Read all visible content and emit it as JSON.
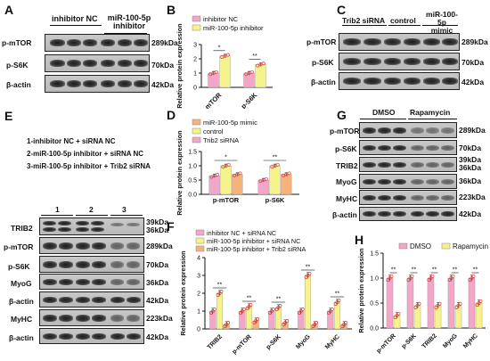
{
  "panels": {
    "A": {
      "label": "A",
      "groups": [
        "inhibitor NC",
        "miR-100-5p\ninhibitor"
      ],
      "rows": [
        {
          "name": "p-mTOR",
          "kda": "289kDa"
        },
        {
          "name": "p-S6K",
          "kda": "70kDa"
        },
        {
          "name": "β-actin",
          "kda": "42kDa"
        }
      ]
    },
    "C": {
      "label": "C",
      "groups": [
        "Trib2 siRNA",
        "control",
        "miR-100-5p\nmimic"
      ],
      "rows": [
        {
          "name": "p-mTOR",
          "kda": "289kDa"
        },
        {
          "name": "p-S6K",
          "kda": "70kDa"
        },
        {
          "name": "β-actin",
          "kda": "42kDa"
        }
      ]
    },
    "E": {
      "label": "E",
      "legend": [
        "1-inhibitor NC + siRNA NC",
        "2-miR-100-5p inhibitor + siRNA NC",
        "3-miR-100-5p inhibitor + Trib2 siRNA"
      ],
      "lanes": [
        "1",
        "2",
        "3"
      ],
      "rows": [
        {
          "name": "TRIB2",
          "kda": "39kDa\n36kDa"
        },
        {
          "name": "p-mTOR",
          "kda": "289kDa"
        },
        {
          "name": "p-S6K",
          "kda": "70kDa"
        },
        {
          "name": "MyoG",
          "kda": "36kDa"
        },
        {
          "name": "β-actin",
          "kda": "42kDa"
        },
        {
          "name": "MyHC",
          "kda": "223kDa"
        },
        {
          "name": "β-actin",
          "kda": "42kDa"
        }
      ]
    },
    "G": {
      "label": "G",
      "groups": [
        "DMSO",
        "Rapamycin"
      ],
      "rows": [
        {
          "name": "p-mTOR",
          "kda": "289kDa"
        },
        {
          "name": "p-S6K",
          "kda": "70kDa"
        },
        {
          "name": "TRIB2",
          "kda": "39kDa\n36kDa"
        },
        {
          "name": "MyoG",
          "kda": "36kDa"
        },
        {
          "name": "MyHC",
          "kda": "223kDa"
        },
        {
          "name": "β-actin",
          "kda": "42kDa"
        }
      ]
    }
  },
  "chart_data": [
    {
      "id": "B",
      "label": "B",
      "type": "bar",
      "ylabel": "Relative protein expression",
      "ylim": [
        0,
        3
      ],
      "yticks": [
        0,
        1,
        2,
        3
      ],
      "categories": [
        "p-mTOR",
        "p-S6K"
      ],
      "series": [
        {
          "name": "inhibitor NC",
          "color": "#f2a6c8",
          "values": [
            1.0,
            1.0
          ]
        },
        {
          "name": "miR-100-5p inhibitor",
          "color": "#f6f28c",
          "values": [
            2.2,
            1.6
          ]
        }
      ],
      "significance": [
        "*",
        "**"
      ]
    },
    {
      "id": "D",
      "label": "D",
      "type": "bar",
      "ylabel": "Relative protein expression",
      "ylim": [
        0,
        1.5
      ],
      "yticks": [
        0.0,
        0.5,
        1.0,
        1.5
      ],
      "categories": [
        "p-mTOR",
        "p-S6K"
      ],
      "series": [
        {
          "name": "Trib2 siRNA",
          "color": "#f2a6c8",
          "values": [
            0.65,
            0.5
          ]
        },
        {
          "name": "control",
          "color": "#f6f28c",
          "values": [
            1.0,
            1.0
          ]
        },
        {
          "name": "miR-100-5p mimic",
          "color": "#f5b27c",
          "values": [
            0.7,
            0.7
          ]
        }
      ],
      "legend_order": [
        "miR-100-5p mimic",
        "control",
        "Trib2 siRNA"
      ],
      "significance": [
        "*",
        "**",
        "**",
        "**"
      ]
    },
    {
      "id": "F",
      "label": "F",
      "type": "bar",
      "ylabel": "Relative protein expression",
      "ylim": [
        0,
        4
      ],
      "yticks": [
        0,
        1,
        2,
        3,
        4
      ],
      "categories": [
        "TRIB2",
        "p-mTOR",
        "p-S6K",
        "MyoG",
        "MyHC"
      ],
      "series": [
        {
          "name": "inhibitor NC + siRNA NC",
          "color": "#f2a6c8",
          "values": [
            1.0,
            1.0,
            1.0,
            1.0,
            1.0
          ]
        },
        {
          "name": "miR-100-5p inhibitor + siRNA NC",
          "color": "#f6f28c",
          "values": [
            2.0,
            1.25,
            1.2,
            3.0,
            1.5
          ]
        },
        {
          "name": "miR-100-5p inhibitor + Trib2 siRNA",
          "color": "#f5b27c",
          "values": [
            0.25,
            0.45,
            0.35,
            0.25,
            0.25
          ]
        }
      ],
      "significance": [
        "**",
        "**",
        "**",
        "**",
        "**"
      ]
    },
    {
      "id": "H",
      "label": "H",
      "type": "bar",
      "ylabel": "Relative protein expression",
      "ylim": [
        0,
        1.5
      ],
      "yticks": [
        0.0,
        0.5,
        1.0,
        1.5
      ],
      "categories": [
        "p-mTOR",
        "p-S6K",
        "TRIB2",
        "MyoG",
        "MyHC"
      ],
      "series": [
        {
          "name": "DMSO",
          "color": "#f2a6c8",
          "values": [
            1.0,
            1.0,
            1.0,
            1.0,
            1.0
          ]
        },
        {
          "name": "Rapamycin",
          "color": "#f6f28c",
          "values": [
            0.25,
            0.45,
            0.45,
            0.45,
            0.5
          ]
        }
      ],
      "significance": [
        "**",
        "**",
        "**",
        "**",
        "**"
      ]
    }
  ]
}
